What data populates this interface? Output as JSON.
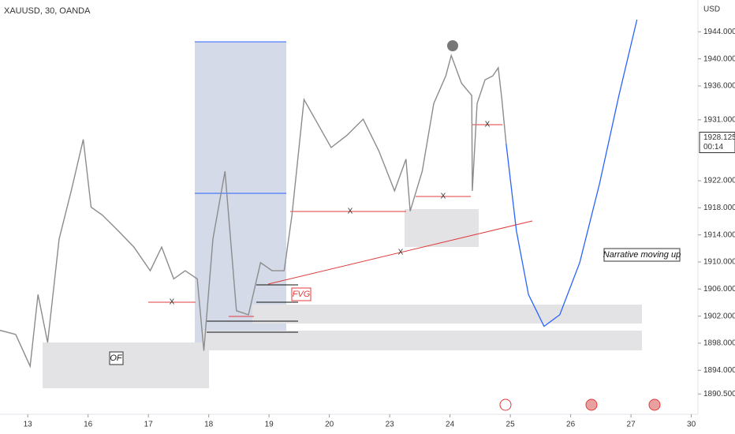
{
  "chart_data": {
    "type": "line",
    "title": "XAUUSD, 30, OANDA",
    "y_axis_unit": "USD",
    "color": "#8c8c8c",
    "x": [
      -0.46,
      -0.2,
      0.04,
      0.17,
      0.33,
      0.52,
      0.72,
      0.92,
      1.05,
      1.24,
      1.5,
      1.76,
      2.03,
      2.22,
      2.42,
      2.61,
      2.81,
      2.92,
      3.07,
      3.27,
      3.46,
      3.66,
      3.86,
      4.05,
      4.25,
      4.38,
      4.58,
      4.84,
      5.03,
      5.29,
      5.56,
      5.82,
      6.08,
      6.27,
      6.34,
      6.54,
      6.73,
      6.93,
      7.02,
      7.19,
      7.36,
      7.37,
      7.45,
      7.58,
      7.71,
      7.8,
      7.86,
      7.93
    ],
    "values": [
      1899.9,
      1899.3,
      1894.6,
      1905.2,
      1898.1,
      1913.4,
      1920.5,
      1928.1,
      1918.1,
      1916.9,
      1914.6,
      1912.2,
      1908.7,
      1912.2,
      1907.5,
      1908.7,
      1907.5,
      1896.9,
      1913.4,
      1923.4,
      1902.8,
      1902.2,
      1909.9,
      1908.7,
      1908.7,
      1916.9,
      1934.0,
      1929.9,
      1926.9,
      1928.7,
      1931.1,
      1926.4,
      1920.5,
      1925.2,
      1917.5,
      1923.4,
      1933.4,
      1937.5,
      1940.5,
      1936.4,
      1934.6,
      1920.5,
      1933.4,
      1936.9,
      1937.5,
      1938.7,
      1934.0,
      1927.5
    ],
    "projection": {
      "color": "#2962ff",
      "x": [
        7.93,
        8.1,
        8.3,
        8.56,
        8.82,
        9.15,
        9.48,
        9.8,
        10.1
      ],
      "values": [
        1927.5,
        1914.6,
        1905.2,
        1900.5,
        1902.2,
        1909.9,
        1921.6,
        1934.6,
        1945.8
      ]
    },
    "xlim": [
      -0.46,
      11.11
    ],
    "xticks": [
      {
        "value": 0,
        "label": "13"
      },
      {
        "value": 1,
        "label": "16"
      },
      {
        "value": 2,
        "label": "17"
      },
      {
        "value": 3,
        "label": "18"
      },
      {
        "value": 4,
        "label": "19"
      },
      {
        "value": 5,
        "label": "20"
      },
      {
        "value": 6,
        "label": "23"
      },
      {
        "value": 7,
        "label": "24"
      },
      {
        "value": 8,
        "label": "25"
      },
      {
        "value": 9,
        "label": "26"
      },
      {
        "value": 10,
        "label": "27"
      },
      {
        "value": 11,
        "label": "30"
      }
    ],
    "ylim": [
      1887.5,
      1948.7
    ],
    "yticks": [
      {
        "value": 1890.5,
        "label": "1890.500"
      },
      {
        "value": 1894,
        "label": "1894.000"
      },
      {
        "value": 1898,
        "label": "1898.000"
      },
      {
        "value": 1902,
        "label": "1902.000"
      },
      {
        "value": 1906,
        "label": "1906.000"
      },
      {
        "value": 1910,
        "label": "1910.000"
      },
      {
        "value": 1914,
        "label": "1914.000"
      },
      {
        "value": 1918,
        "label": "1918.000"
      },
      {
        "value": 1922,
        "label": "1922.000"
      },
      {
        "value": 1931,
        "label": "1931.000"
      },
      {
        "value": 1936,
        "label": "1936.000"
      },
      {
        "value": 1940,
        "label": "1940.000"
      },
      {
        "value": 1944,
        "label": "1944.000"
      }
    ],
    "last_price": {
      "value": 1928.125,
      "label": "1928.125"
    },
    "countdown": "00:14",
    "annotations": {
      "of": "OF",
      "fvg": "FVG",
      "narrative": "Narrative moving up",
      "x_marks": [
        "X",
        "X",
        "X",
        "X",
        "X"
      ]
    }
  }
}
